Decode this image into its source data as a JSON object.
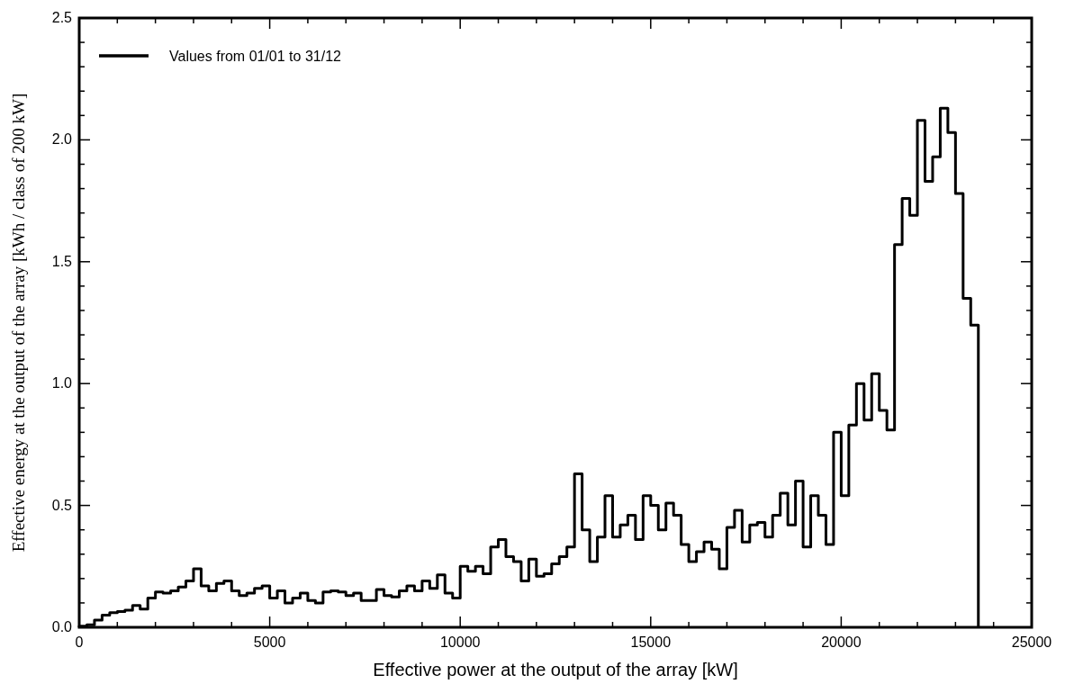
{
  "chart_data": {
    "type": "histogram",
    "xlabel": "Effective power at the output of the array [kW]",
    "ylabel": "Effective energy at the output of the array [kWh / class of 200 kW]",
    "bins": [
      0,
      200,
      400,
      600,
      800,
      1000,
      1200,
      1400,
      1600,
      1800,
      2000,
      2200,
      2400,
      2600,
      2800,
      3000,
      3200,
      3400,
      3600,
      3800,
      4000,
      4200,
      4400,
      4600,
      4800,
      5000,
      5200,
      5400,
      5600,
      5800,
      6000,
      6200,
      6400,
      6600,
      6800,
      7000,
      7200,
      7400,
      7600,
      7800,
      8000,
      8200,
      8400,
      8600,
      8800,
      9000,
      9200,
      9400,
      9600,
      9800,
      10000,
      10200,
      10400,
      10600,
      10800,
      11000,
      11200,
      11400,
      11600,
      11800,
      12000,
      12200,
      12400,
      12600,
      12800,
      13000,
      13200,
      13400,
      13600,
      13800,
      14000,
      14200,
      14400,
      14600,
      14800,
      15000,
      15200,
      15400,
      15600,
      15800,
      16000,
      16200,
      16400,
      16600,
      16800,
      17000,
      17200,
      17400,
      17600,
      17800,
      18000,
      18200,
      18400,
      18600,
      18800,
      19000,
      19200,
      19400,
      19600,
      19800,
      20000,
      20200,
      20400,
      20600,
      20800,
      21000,
      21200,
      21400,
      21600,
      21800,
      22000,
      22200,
      22400,
      22600,
      22800,
      23000,
      23200,
      23400,
      23600
    ],
    "series": [
      {
        "name": "Values from 01/01 to 31/12",
        "color": "#000000",
        "values": [
          0.005,
          0.01,
          0.03,
          0.05,
          0.06,
          0.065,
          0.07,
          0.09,
          0.075,
          0.12,
          0.145,
          0.14,
          0.15,
          0.165,
          0.19,
          0.24,
          0.17,
          0.15,
          0.18,
          0.19,
          0.15,
          0.13,
          0.14,
          0.16,
          0.17,
          0.12,
          0.15,
          0.1,
          0.12,
          0.14,
          0.11,
          0.1,
          0.145,
          0.15,
          0.145,
          0.13,
          0.14,
          0.11,
          0.11,
          0.155,
          0.13,
          0.125,
          0.15,
          0.17,
          0.15,
          0.19,
          0.16,
          0.215,
          0.14,
          0.12,
          0.25,
          0.23,
          0.25,
          0.22,
          0.33,
          0.36,
          0.29,
          0.27,
          0.19,
          0.28,
          0.21,
          0.22,
          0.26,
          0.29,
          0.33,
          0.63,
          0.4,
          0.27,
          0.37,
          0.54,
          0.37,
          0.42,
          0.46,
          0.36,
          0.54,
          0.5,
          0.4,
          0.51,
          0.46,
          0.34,
          0.27,
          0.31,
          0.35,
          0.32,
          0.24,
          0.41,
          0.48,
          0.35,
          0.42,
          0.43,
          0.37,
          0.46,
          0.55,
          0.42,
          0.6,
          0.33,
          0.54,
          0.46,
          0.34,
          0.8,
          0.54,
          0.83,
          1.0,
          0.85,
          1.04,
          0.89,
          0.81,
          1.57,
          1.76,
          1.69,
          2.08,
          1.83,
          1.93,
          2.13,
          2.03,
          1.78,
          1.35,
          1.24
        ]
      }
    ],
    "xlim": [
      0,
      25000
    ],
    "xticks": [
      0,
      {
        "value": 1000,
        "label": null
      },
      {
        "value": 2000,
        "label": null
      },
      {
        "value": 3000,
        "label": null
      },
      {
        "value": 4000,
        "label": null
      },
      5000,
      {
        "value": 6000,
        "label": null
      },
      {
        "value": 7000,
        "label": null
      },
      {
        "value": 8000,
        "label": null
      },
      {
        "value": 9000,
        "label": null
      },
      10000,
      {
        "value": 11000,
        "label": null
      },
      {
        "value": 12000,
        "label": null
      },
      {
        "value": 13000,
        "label": null
      },
      {
        "value": 14000,
        "label": null
      },
      15000,
      {
        "value": 16000,
        "label": null
      },
      {
        "value": 17000,
        "label": null
      },
      {
        "value": 18000,
        "label": null
      },
      {
        "value": 19000,
        "label": null
      },
      20000,
      {
        "value": 21000,
        "label": null
      },
      {
        "value": 22000,
        "label": null
      },
      {
        "value": 23000,
        "label": null
      },
      {
        "value": 24000,
        "label": null
      },
      25000
    ],
    "ylim": [
      0,
      2.5
    ],
    "yticks": [
      {
        "value": 0,
        "label": "0.0"
      },
      {
        "value": 0.1,
        "label": null
      },
      {
        "value": 0.2,
        "label": null
      },
      {
        "value": 0.3,
        "label": null
      },
      {
        "value": 0.4,
        "label": null
      },
      {
        "value": 0.5,
        "label": "0.5"
      },
      {
        "value": 0.6,
        "label": null
      },
      {
        "value": 0.7,
        "label": null
      },
      {
        "value": 0.8,
        "label": null
      },
      {
        "value": 0.9,
        "label": null
      },
      {
        "value": 1,
        "label": "1.0"
      },
      {
        "value": 1.1,
        "label": null
      },
      {
        "value": 1.2,
        "label": null
      },
      {
        "value": 1.3,
        "label": null
      },
      {
        "value": 1.4,
        "label": null
      },
      {
        "value": 1.5,
        "label": "1.5"
      },
      {
        "value": 1.6,
        "label": null
      },
      {
        "value": 1.7,
        "label": null
      },
      {
        "value": 1.8,
        "label": null
      },
      {
        "value": 1.9,
        "label": null
      },
      {
        "value": 2,
        "label": "2.0"
      },
      {
        "value": 2.1,
        "label": null
      },
      {
        "value": 2.2,
        "label": null
      },
      {
        "value": 2.3,
        "label": null
      },
      {
        "value": 2.4,
        "label": null
      },
      {
        "value": 2.5,
        "label": "2.5"
      }
    ],
    "legend": "top left",
    "grid": false
  }
}
